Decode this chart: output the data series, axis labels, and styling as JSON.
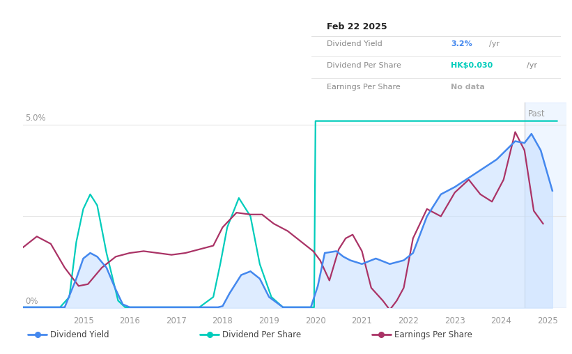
{
  "ylabel_5pct": "5.0%",
  "ylabel_0pct": "0%",
  "past_label": "Past",
  "x_min": 2013.7,
  "x_max": 2025.4,
  "y_min": 0.0,
  "y_max": 5.6,
  "past_start": 2024.5,
  "tooltip": {
    "date": "Feb 22 2025",
    "rows": [
      {
        "label": "Dividend Yield",
        "value": "3.2%",
        "unit": "/yr",
        "color": "#4488ee"
      },
      {
        "label": "Dividend Per Share",
        "value": "HK$0.030",
        "unit": "/yr",
        "color": "#00ccbb"
      },
      {
        "label": "Earnings Per Share",
        "value": "No data",
        "unit": "",
        "color": "#aaaaaa"
      }
    ]
  },
  "legend": [
    {
      "label": "Dividend Yield",
      "color": "#4488ee"
    },
    {
      "label": "Dividend Per Share",
      "color": "#00ccbb"
    },
    {
      "label": "Earnings Per Share",
      "color": "#aa3366"
    }
  ],
  "div_yield": {
    "x": [
      2013.7,
      2014.0,
      2014.3,
      2014.6,
      2014.85,
      2015.0,
      2015.15,
      2015.3,
      2015.5,
      2015.7,
      2015.85,
      2016.0,
      2016.3,
      2016.6,
      2017.0,
      2017.5,
      2017.9,
      2018.0,
      2018.15,
      2018.4,
      2018.6,
      2018.8,
      2019.0,
      2019.3,
      2019.6,
      2019.9,
      2020.05,
      2020.2,
      2020.45,
      2020.6,
      2020.75,
      2021.0,
      2021.3,
      2021.6,
      2021.9,
      2022.1,
      2022.4,
      2022.7,
      2023.0,
      2023.3,
      2023.6,
      2023.9,
      2024.1,
      2024.3,
      2024.5,
      2024.65,
      2024.85,
      2025.1
    ],
    "y": [
      0.02,
      0.02,
      0.02,
      0.02,
      0.8,
      1.35,
      1.5,
      1.4,
      1.1,
      0.5,
      0.1,
      0.02,
      0.02,
      0.02,
      0.02,
      0.02,
      0.02,
      0.05,
      0.4,
      0.9,
      1.0,
      0.8,
      0.3,
      0.02,
      0.02,
      0.02,
      0.6,
      1.5,
      1.55,
      1.4,
      1.3,
      1.2,
      1.35,
      1.2,
      1.3,
      1.5,
      2.5,
      3.1,
      3.3,
      3.55,
      3.8,
      4.05,
      4.3,
      4.55,
      4.5,
      4.75,
      4.3,
      3.2
    ],
    "color": "#4488ee",
    "fill_color": "#c8e0ff",
    "fill_alpha": 0.6
  },
  "div_per_share": {
    "x": [
      2013.7,
      2014.0,
      2014.5,
      2014.7,
      2014.85,
      2015.0,
      2015.15,
      2015.3,
      2015.5,
      2015.75,
      2015.9,
      2016.1,
      2016.5,
      2017.0,
      2017.5,
      2017.8,
      2017.95,
      2018.1,
      2018.35,
      2018.6,
      2018.8,
      2019.05,
      2019.3,
      2019.6,
      2019.85,
      2019.97,
      2020.0,
      2020.02,
      2020.5,
      2025.2
    ],
    "y": [
      0.02,
      0.02,
      0.02,
      0.3,
      1.8,
      2.7,
      3.1,
      2.8,
      1.5,
      0.2,
      0.02,
      0.02,
      0.02,
      0.02,
      0.02,
      0.3,
      1.2,
      2.2,
      3.0,
      2.5,
      1.2,
      0.3,
      0.02,
      0.02,
      0.02,
      0.02,
      5.1,
      5.1,
      5.1,
      5.1
    ],
    "color": "#00ccbb",
    "linewidth": 1.6
  },
  "earnings_per_share": {
    "x": [
      2013.7,
      2014.0,
      2014.3,
      2014.6,
      2014.9,
      2015.1,
      2015.4,
      2015.7,
      2016.0,
      2016.3,
      2016.6,
      2016.9,
      2017.2,
      2017.5,
      2017.8,
      2018.0,
      2018.3,
      2018.6,
      2018.85,
      2019.1,
      2019.4,
      2019.7,
      2019.95,
      2020.1,
      2020.3,
      2020.5,
      2020.65,
      2020.8,
      2021.0,
      2021.2,
      2021.45,
      2021.6,
      2021.75,
      2021.9,
      2022.1,
      2022.4,
      2022.7,
      2023.0,
      2023.3,
      2023.55,
      2023.8,
      2024.05,
      2024.3,
      2024.5,
      2024.7,
      2024.9
    ],
    "y": [
      1.65,
      1.95,
      1.75,
      1.1,
      0.6,
      0.65,
      1.1,
      1.4,
      1.5,
      1.55,
      1.5,
      1.45,
      1.5,
      1.6,
      1.7,
      2.2,
      2.6,
      2.55,
      2.55,
      2.3,
      2.1,
      1.8,
      1.55,
      1.3,
      0.75,
      1.6,
      1.9,
      2.0,
      1.55,
      0.55,
      0.2,
      -0.05,
      0.2,
      0.55,
      1.9,
      2.7,
      2.5,
      3.15,
      3.5,
      3.1,
      2.9,
      3.5,
      4.8,
      4.3,
      2.65,
      2.3
    ],
    "color": "#aa3366",
    "linewidth": 1.6
  },
  "bg_color": "#ffffff",
  "grid_color": "#e5e5e5",
  "axis_color": "#cccccc",
  "tick_color": "#999999",
  "x_ticks": [
    2015,
    2016,
    2017,
    2018,
    2019,
    2020,
    2021,
    2022,
    2023,
    2024,
    2025
  ],
  "x_tick_labels": [
    "2015",
    "2016",
    "2017",
    "2018",
    "2019",
    "2020",
    "2021",
    "2022",
    "2023",
    "2024",
    "2025"
  ]
}
